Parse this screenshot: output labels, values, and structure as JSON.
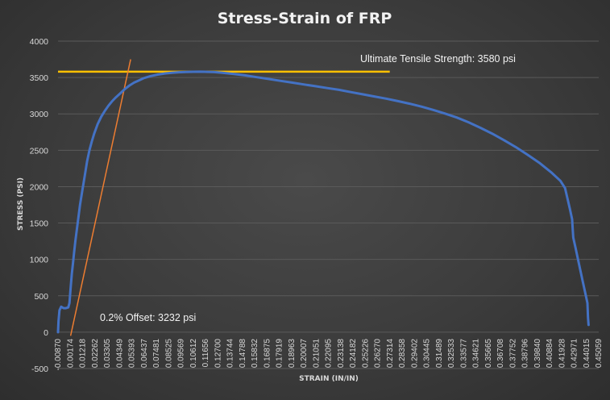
{
  "chart_data": {
    "type": "line",
    "title": "Stress-Strain of FRP",
    "xlabel": "STRAIN (IN/IN)",
    "ylabel": "STRESS (PSI)",
    "ylim": [
      -500,
      4000
    ],
    "yticks": [
      "4000",
      "3500",
      "3000",
      "2500",
      "2000",
      "1500",
      "1000",
      "500",
      "0",
      "-500"
    ],
    "xtick_labels": [
      "-0.00870",
      "0.00174",
      "0.01218",
      "0.02262",
      "0.03305",
      "0.04349",
      "0.05393",
      "0.06437",
      "0.07481",
      "0.08525",
      "0.09569",
      "0.10612",
      "0.11656",
      "0.12700",
      "0.13744",
      "0.14788",
      "0.15832",
      "0.16875",
      "0.17919",
      "0.18963",
      "0.20007",
      "0.21051",
      "0.22095",
      "0.23138",
      "0.24182",
      "0.25226",
      "0.26270",
      "0.27314",
      "0.28358",
      "0.29402",
      "0.30445",
      "0.31489",
      "0.32533",
      "0.33577",
      "0.34621",
      "0.35665",
      "0.36708",
      "0.37752",
      "0.38796",
      "0.39840",
      "0.40884",
      "0.41928",
      "0.42971",
      "0.44015",
      "0.45059"
    ],
    "xlim": [
      -0.0087,
      0.4506
    ],
    "grid": true,
    "colors": {
      "curve": "#4472c4",
      "uts_line": "#ffc000",
      "offset_line": "#ed7d31"
    },
    "series": [
      {
        "type": "line",
        "x": [
          -0.0087,
          -0.0083,
          -0.0075,
          -0.006,
          -0.004,
          -0.002,
          0.0,
          0.001,
          0.0015,
          0.002,
          0.003,
          0.004,
          0.005,
          0.006,
          0.008,
          0.01,
          0.012,
          0.014,
          0.016,
          0.018,
          0.02,
          0.022,
          0.025,
          0.028,
          0.031,
          0.034,
          0.037,
          0.04,
          0.044,
          0.048,
          0.052,
          0.056,
          0.06,
          0.064,
          0.07,
          0.076,
          0.082,
          0.088,
          0.094,
          0.1,
          0.106,
          0.112,
          0.118,
          0.124,
          0.13,
          0.14,
          0.15,
          0.16,
          0.17,
          0.18,
          0.19,
          0.2,
          0.21,
          0.22,
          0.23,
          0.24,
          0.25,
          0.26,
          0.27,
          0.28,
          0.29,
          0.3,
          0.31,
          0.32,
          0.33,
          0.34,
          0.35,
          0.36,
          0.37,
          0.38,
          0.39,
          0.4,
          0.41,
          0.418,
          0.422,
          0.426,
          0.428,
          0.4285,
          0.429,
          0.431,
          0.433,
          0.435,
          0.437,
          0.439,
          0.441,
          0.4415,
          0.442
        ],
        "y": [
          0,
          150,
          300,
          350,
          330,
          330,
          340,
          400,
          500,
          600,
          800,
          950,
          1100,
          1250,
          1500,
          1750,
          1950,
          2150,
          2350,
          2500,
          2620,
          2730,
          2860,
          2960,
          3040,
          3110,
          3170,
          3220,
          3280,
          3340,
          3390,
          3430,
          3460,
          3490,
          3520,
          3540,
          3555,
          3565,
          3572,
          3576,
          3579,
          3580,
          3578,
          3574,
          3567,
          3550,
          3530,
          3505,
          3480,
          3455,
          3430,
          3405,
          3380,
          3355,
          3330,
          3300,
          3270,
          3240,
          3210,
          3175,
          3140,
          3100,
          3055,
          3005,
          2950,
          2885,
          2810,
          2730,
          2640,
          2545,
          2440,
          2330,
          2200,
          2080,
          1980,
          1700,
          1550,
          1420,
          1300,
          1150,
          1000,
          850,
          700,
          550,
          400,
          200,
          100
        ]
      }
    ],
    "reference_lines": [
      {
        "type": "horizontal",
        "y": 3580,
        "x_range": [
          -0.0087,
          0.2731
        ],
        "label": "Ultimate Tensile Strength: 3580 psi"
      },
      {
        "type": "offset",
        "x_start": 0.002,
        "y_start": -50,
        "x_end": 0.053,
        "y_end": 3750,
        "label": "0.2% Offset: 3232 psi"
      }
    ]
  }
}
